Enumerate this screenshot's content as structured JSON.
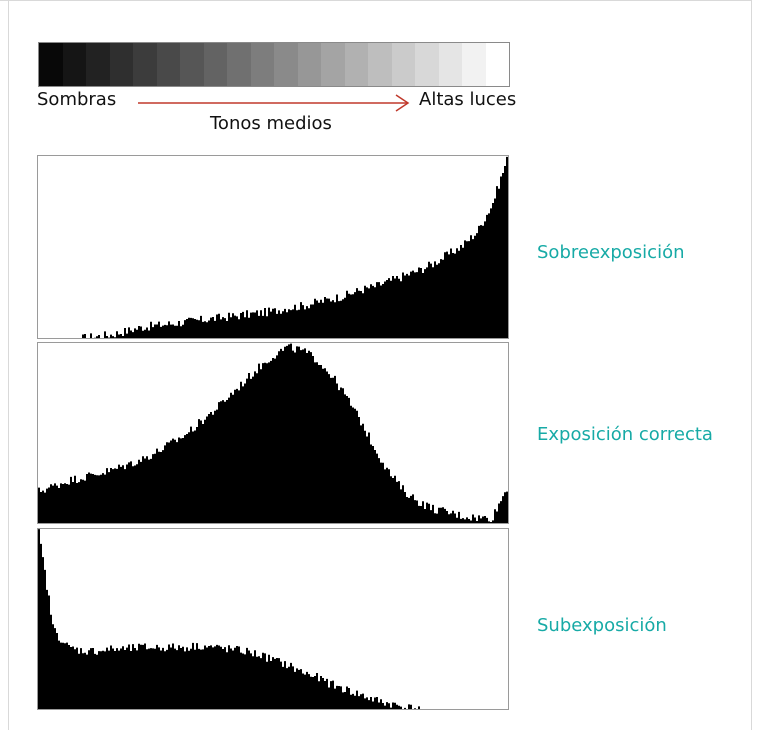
{
  "colors": {
    "label": "#17aaa6",
    "arrow": "#c0392b",
    "histogram": "#000000"
  },
  "scale": {
    "shadows": "Sombras",
    "highlights": "Altas luces",
    "midtones": "Tonos medios",
    "steps": 20
  },
  "histograms": [
    {
      "label": "Sobreexposición",
      "tonal_profile": [
        0,
        0,
        0,
        0,
        1,
        2,
        4,
        6,
        7,
        8,
        9,
        10,
        11,
        12,
        13,
        14,
        15,
        17,
        18,
        20,
        22,
        24,
        27,
        29,
        32,
        35,
        38,
        42,
        47,
        52,
        60,
        75,
        100
      ],
      "bottom_shading": "#cfcfcf"
    },
    {
      "label": "Exposición correcta",
      "tonal_profile": [
        18,
        21,
        24,
        26,
        28,
        30,
        33,
        36,
        40,
        45,
        50,
        57,
        64,
        72,
        80,
        88,
        95,
        100,
        98,
        93,
        84,
        72,
        58,
        42,
        28,
        18,
        12,
        8,
        6,
        4,
        3,
        3,
        20
      ],
      "bottom_shading": ""
    },
    {
      "label": "Subexposición",
      "tonal_profile": [
        100,
        45,
        35,
        33,
        33,
        34,
        34,
        35,
        35,
        35,
        35,
        36,
        35,
        34,
        33,
        31,
        28,
        25,
        21,
        18,
        14,
        11,
        8,
        5,
        3,
        1,
        0,
        0,
        0,
        0,
        0,
        0,
        0
      ],
      "bottom_shading": ""
    }
  ]
}
